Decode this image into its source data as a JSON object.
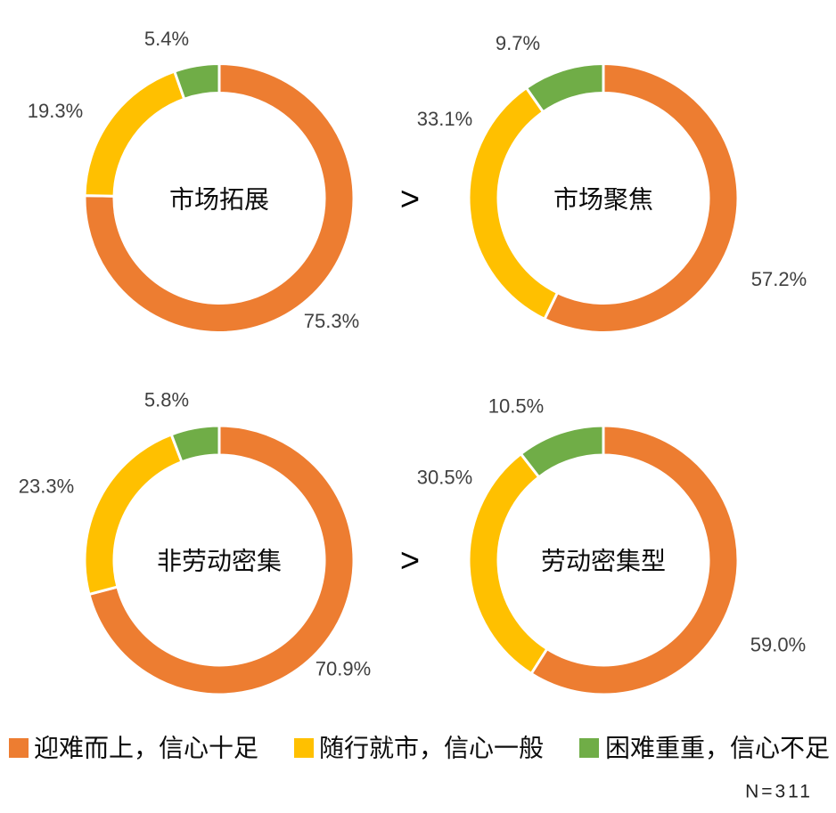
{
  "chart_data": [
    {
      "type": "pie",
      "style": "donut",
      "center_label": "市场拓展",
      "values": [
        75.3,
        19.3,
        5.4
      ],
      "unit": "%"
    },
    {
      "type": "pie",
      "style": "donut",
      "center_label": "市场聚焦",
      "values": [
        57.2,
        33.1,
        9.7
      ],
      "unit": "%"
    },
    {
      "type": "pie",
      "style": "donut",
      "center_label": "非劳动密集",
      "values": [
        70.9,
        23.3,
        5.8
      ],
      "unit": "%"
    },
    {
      "type": "pie",
      "style": "donut",
      "center_label": "劳动密集型",
      "values": [
        59.0,
        30.5,
        10.5
      ],
      "unit": "%"
    }
  ],
  "legend": {
    "placement": "bottom",
    "items": [
      {
        "label": "迎难而上，信心十足",
        "color": "#ED7D31"
      },
      {
        "label": "随行就市，信心一般",
        "color": "#FFC000"
      },
      {
        "label": "困难重重，信心不足",
        "color": "#70AD47"
      }
    ]
  },
  "comparisons": [
    ">",
    ">"
  ],
  "sample_size": "N=311"
}
